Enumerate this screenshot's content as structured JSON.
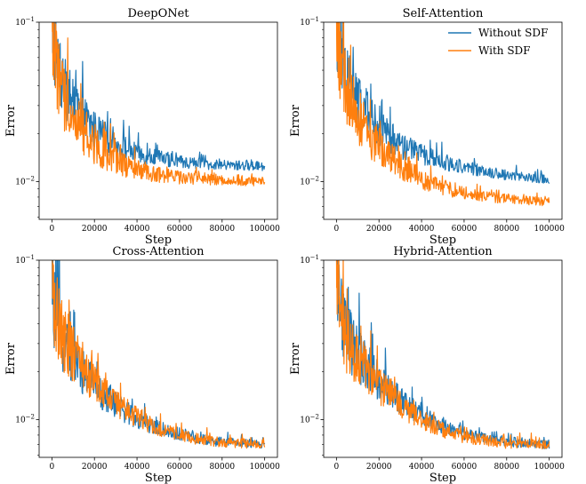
{
  "figure": {
    "legend_labels": [
      "Without SDF",
      "With SDF"
    ],
    "colors": {
      "without_sdf": "#1f77b4",
      "with_sdf": "#ff7f0e"
    }
  },
  "chart_data": [
    {
      "type": "line",
      "title": "DeepONet",
      "xlabel": "Step",
      "ylabel": "Error",
      "xlim": [
        -6000,
        106000
      ],
      "ylim": [
        0.0058,
        0.1
      ],
      "yscale": "log",
      "xticks": [
        0,
        20000,
        40000,
        60000,
        80000,
        100000
      ],
      "ytick_labels": [
        "10^-1",
        "10^-2"
      ],
      "legend": "none",
      "series": [
        {
          "name": "Without SDF",
          "x": [
            0,
            1000,
            3000,
            5000,
            10000,
            15000,
            20000,
            25000,
            30000,
            35000,
            40000,
            45000,
            50000,
            60000,
            70000,
            80000,
            90000,
            100000
          ],
          "values": [
            0.1,
            0.07,
            0.05,
            0.04,
            0.03,
            0.025,
            0.021,
            0.019,
            0.017,
            0.016,
            0.015,
            0.0145,
            0.014,
            0.0133,
            0.013,
            0.0127,
            0.0126,
            0.0125
          ]
        },
        {
          "name": "With SDF",
          "x": [
            0,
            1000,
            3000,
            5000,
            10000,
            15000,
            20000,
            25000,
            30000,
            35000,
            40000,
            45000,
            50000,
            60000,
            70000,
            80000,
            90000,
            100000
          ],
          "values": [
            0.1,
            0.065,
            0.045,
            0.035,
            0.025,
            0.02,
            0.017,
            0.015,
            0.0135,
            0.0125,
            0.0118,
            0.0113,
            0.011,
            0.0106,
            0.0104,
            0.0102,
            0.0101,
            0.01
          ]
        }
      ]
    },
    {
      "type": "line",
      "title": "Self-Attention",
      "xlabel": "Step",
      "ylabel": "Error",
      "xlim": [
        -6000,
        106000
      ],
      "ylim": [
        0.0058,
        0.1
      ],
      "yscale": "log",
      "xticks": [
        0,
        20000,
        40000,
        60000,
        80000,
        100000
      ],
      "ytick_labels": [
        "10^-1",
        "10^-2"
      ],
      "legend": "top-right",
      "series": [
        {
          "name": "Without SDF",
          "x": [
            0,
            1000,
            3000,
            5000,
            10000,
            15000,
            20000,
            25000,
            30000,
            35000,
            40000,
            45000,
            50000,
            60000,
            70000,
            80000,
            90000,
            100000
          ],
          "values": [
            0.1,
            0.07,
            0.052,
            0.042,
            0.032,
            0.026,
            0.022,
            0.019,
            0.017,
            0.0158,
            0.0148,
            0.014,
            0.0133,
            0.0123,
            0.0116,
            0.011,
            0.0106,
            0.0103
          ]
        },
        {
          "name": "With SDF",
          "x": [
            0,
            1000,
            3000,
            5000,
            10000,
            15000,
            20000,
            25000,
            30000,
            35000,
            40000,
            45000,
            50000,
            60000,
            70000,
            80000,
            90000,
            100000
          ],
          "values": [
            0.1,
            0.065,
            0.046,
            0.036,
            0.026,
            0.02,
            0.0165,
            0.0142,
            0.0125,
            0.0113,
            0.0104,
            0.0097,
            0.0092,
            0.0085,
            0.0081,
            0.0078,
            0.0076,
            0.0075
          ]
        }
      ]
    },
    {
      "type": "line",
      "title": "Cross-Attention",
      "xlabel": "Step",
      "ylabel": "Error",
      "xlim": [
        -6000,
        106000
      ],
      "ylim": [
        0.0058,
        0.1
      ],
      "yscale": "log",
      "xticks": [
        0,
        20000,
        40000,
        60000,
        80000,
        100000
      ],
      "ytick_labels": [
        "10^-1",
        "10^-2"
      ],
      "legend": "none",
      "series": [
        {
          "name": "Without SDF",
          "x": [
            0,
            1000,
            3000,
            5000,
            10000,
            15000,
            20000,
            25000,
            30000,
            35000,
            40000,
            45000,
            50000,
            60000,
            70000,
            80000,
            90000,
            100000
          ],
          "values": [
            0.1,
            0.05,
            0.038,
            0.032,
            0.025,
            0.02,
            0.0165,
            0.0142,
            0.0125,
            0.0112,
            0.0102,
            0.0094,
            0.0088,
            0.008,
            0.0075,
            0.0072,
            0.0071,
            0.007
          ]
        },
        {
          "name": "With SDF",
          "x": [
            0,
            1000,
            3000,
            5000,
            10000,
            15000,
            20000,
            25000,
            30000,
            35000,
            40000,
            45000,
            50000,
            60000,
            70000,
            80000,
            90000,
            100000
          ],
          "values": [
            0.1,
            0.052,
            0.04,
            0.033,
            0.026,
            0.021,
            0.017,
            0.0146,
            0.0128,
            0.0114,
            0.0103,
            0.0095,
            0.0088,
            0.008,
            0.0075,
            0.0072,
            0.0071,
            0.007
          ]
        }
      ]
    },
    {
      "type": "line",
      "title": "Hybrid-Attention",
      "xlabel": "Step",
      "ylabel": "Error",
      "xlim": [
        -6000,
        106000
      ],
      "ylim": [
        0.0058,
        0.1
      ],
      "yscale": "log",
      "xticks": [
        0,
        20000,
        40000,
        60000,
        80000,
        100000
      ],
      "ytick_labels": [
        "10^-1",
        "10^-2"
      ],
      "legend": "none",
      "series": [
        {
          "name": "Without SDF",
          "x": [
            0,
            1000,
            3000,
            5000,
            10000,
            15000,
            20000,
            25000,
            30000,
            35000,
            40000,
            45000,
            50000,
            60000,
            70000,
            80000,
            90000,
            100000
          ],
          "values": [
            0.1,
            0.055,
            0.04,
            0.033,
            0.026,
            0.021,
            0.0175,
            0.015,
            0.0132,
            0.0118,
            0.0107,
            0.0098,
            0.0091,
            0.0082,
            0.0076,
            0.0073,
            0.0071,
            0.007
          ]
        },
        {
          "name": "With SDF",
          "x": [
            0,
            1000,
            3000,
            5000,
            10000,
            15000,
            20000,
            25000,
            30000,
            35000,
            40000,
            45000,
            50000,
            60000,
            70000,
            80000,
            90000,
            100000
          ],
          "values": [
            0.1,
            0.052,
            0.038,
            0.031,
            0.024,
            0.0195,
            0.0163,
            0.014,
            0.0123,
            0.011,
            0.01,
            0.0092,
            0.0086,
            0.0078,
            0.0074,
            0.0071,
            0.007,
            0.007
          ]
        }
      ]
    }
  ]
}
